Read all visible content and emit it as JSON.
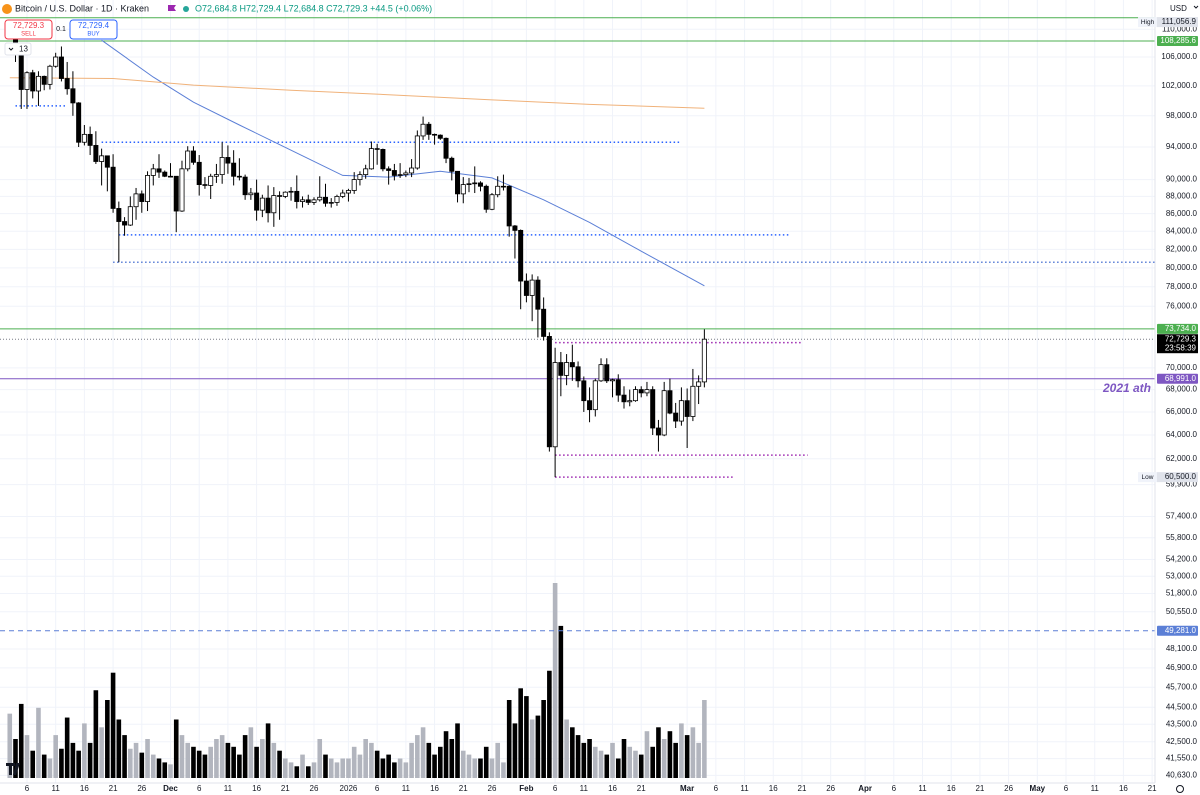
{
  "header": {
    "symbol": "Bitcoin / U.S. Dollar · 1D · Kraken",
    "ohlc": "O72,684.8 H72,729.4 L72,684.8 C72,729.3 +44.5 (+0.06%)",
    "sell_price": "72,729.3",
    "sell": "SELL",
    "spread": "0.1",
    "buy_price": "72,729.4",
    "buy": "BUY",
    "indicators": "13",
    "currency": "USD"
  },
  "chart_data": {
    "type": "candlestick",
    "log_scale": true,
    "grid": true,
    "xlim": [
      -1.7,
      199.5
    ],
    "ylim": [
      40220,
      114380
    ],
    "xticks": [
      {
        "value": 3,
        "label": "6"
      },
      {
        "value": 8,
        "label": "11"
      },
      {
        "value": 13,
        "label": "16"
      },
      {
        "value": 18,
        "label": "21"
      },
      {
        "value": 23,
        "label": "26"
      },
      {
        "value": 28,
        "label": "Dec"
      },
      {
        "value": 33,
        "label": "6"
      },
      {
        "value": 38,
        "label": "11"
      },
      {
        "value": 43,
        "label": "16"
      },
      {
        "value": 48,
        "label": "21"
      },
      {
        "value": 53,
        "label": "26"
      },
      {
        "value": 59,
        "label": "2026"
      },
      {
        "value": 64,
        "label": "6"
      },
      {
        "value": 69,
        "label": "11"
      },
      {
        "value": 74,
        "label": "16"
      },
      {
        "value": 79,
        "label": "21"
      },
      {
        "value": 84,
        "label": "26"
      },
      {
        "value": 90,
        "label": "Feb"
      },
      {
        "value": 95,
        "label": "6"
      },
      {
        "value": 100,
        "label": "11"
      },
      {
        "value": 105,
        "label": "16"
      },
      {
        "value": 110,
        "label": "21"
      },
      {
        "value": 118,
        "label": "Mar"
      },
      {
        "value": 123,
        "label": "6"
      },
      {
        "value": 128,
        "label": "11"
      },
      {
        "value": 133,
        "label": "16"
      },
      {
        "value": 138,
        "label": "21"
      },
      {
        "value": 143,
        "label": "26"
      },
      {
        "value": 149,
        "label": "Apr"
      },
      {
        "value": 154,
        "label": "6"
      },
      {
        "value": 159,
        "label": "11"
      },
      {
        "value": 164,
        "label": "16"
      },
      {
        "value": 169,
        "label": "21"
      },
      {
        "value": 174,
        "label": "26"
      },
      {
        "value": 179,
        "label": "May"
      },
      {
        "value": 184,
        "label": "6"
      },
      {
        "value": 189,
        "label": "11"
      },
      {
        "value": 194,
        "label": "16"
      },
      {
        "value": 199,
        "label": "21"
      }
    ],
    "yticks": [
      {
        "value": 110000,
        "label": "110,000.0"
      },
      {
        "value": 106000,
        "label": "106,000.0"
      },
      {
        "value": 102000,
        "label": "102,000.0"
      },
      {
        "value": 98000,
        "label": "98,000.0"
      },
      {
        "value": 94000,
        "label": "94,000.0"
      },
      {
        "value": 90000,
        "label": "90,000.0"
      },
      {
        "value": 88000,
        "label": "88,000.0"
      },
      {
        "value": 86000,
        "label": "86,000.0"
      },
      {
        "value": 84000,
        "label": "84,000.0"
      },
      {
        "value": 82000,
        "label": "82,000.0"
      },
      {
        "value": 80000,
        "label": "80,000.0"
      },
      {
        "value": 78000,
        "label": "78,000.0"
      },
      {
        "value": 76000,
        "label": "76,000.0"
      },
      {
        "value": 70000,
        "label": "70,000.0"
      },
      {
        "value": 68000,
        "label": "68,000.0"
      },
      {
        "value": 66000,
        "label": "66,000.0"
      },
      {
        "value": 64000,
        "label": "64,000.0"
      },
      {
        "value": 62000,
        "label": "62,000.0"
      },
      {
        "value": 59900,
        "label": "59,900.0"
      },
      {
        "value": 57400,
        "label": "57,400.0"
      },
      {
        "value": 55800,
        "label": "55,800.0"
      },
      {
        "value": 54200,
        "label": "54,200.0"
      },
      {
        "value": 53000,
        "label": "53,000.0"
      },
      {
        "value": 51800,
        "label": "51,800.0"
      },
      {
        "value": 50550,
        "label": "50,550.0"
      },
      {
        "value": 48100,
        "label": "48,100.0"
      },
      {
        "value": 46900,
        "label": "46,900.0"
      },
      {
        "value": 45700,
        "label": "45,700.0"
      },
      {
        "value": 44500,
        "label": "44,500.0"
      },
      {
        "value": 43500,
        "label": "43,500.0"
      },
      {
        "value": 42500,
        "label": "42,500.0"
      },
      {
        "value": 41550,
        "label": "41,550.0"
      },
      {
        "value": 40630,
        "label": "40,630.0"
      }
    ],
    "up_color": "#ffffff",
    "down_color": "#000000",
    "wick_color": "#000000",
    "candles": [
      [
        110500,
        111000,
        109500,
        110600
      ],
      [
        110600,
        110800,
        105300,
        106500
      ],
      [
        106500,
        107300,
        98900,
        101500
      ],
      [
        101500,
        104000,
        98900,
        103800
      ],
      [
        103800,
        104200,
        100300,
        101300
      ],
      [
        101300,
        104000,
        99300,
        103300
      ],
      [
        103300,
        103400,
        101400,
        102200
      ],
      [
        102200,
        104900,
        101500,
        104700
      ],
      [
        104700,
        106600,
        104500,
        106000
      ],
      [
        106000,
        107500,
        102600,
        103000
      ],
      [
        103000,
        105300,
        100800,
        101600
      ],
      [
        101600,
        104000,
        98000,
        99700
      ],
      [
        99700,
        99800,
        94000,
        94600
      ],
      [
        94600,
        96800,
        94200,
        95600
      ],
      [
        95600,
        96600,
        93000,
        94200
      ],
      [
        94200,
        96000,
        91900,
        92200
      ],
      [
        92200,
        93800,
        89300,
        92900
      ],
      [
        92900,
        92900,
        88600,
        91500
      ],
      [
        91500,
        93100,
        86100,
        86600
      ],
      [
        86600,
        87400,
        80600,
        85100
      ],
      [
        85100,
        85600,
        83500,
        84700
      ],
      [
        84700,
        88000,
        84600,
        86800
      ],
      [
        86800,
        89000,
        85300,
        88300
      ],
      [
        88300,
        88700,
        86100,
        87400
      ],
      [
        87400,
        91000,
        86300,
        90500
      ],
      [
        90500,
        91900,
        89300,
        91300
      ],
      [
        91300,
        93100,
        90200,
        90900
      ],
      [
        90900,
        91100,
        90300,
        90400
      ],
      [
        90400,
        92000,
        90300,
        90400
      ],
      [
        90400,
        90400,
        83900,
        86300
      ],
      [
        86300,
        92300,
        86200,
        91300
      ],
      [
        91300,
        94100,
        91000,
        93500
      ],
      [
        93500,
        94100,
        91800,
        92100
      ],
      [
        92100,
        93000,
        88100,
        89400
      ],
      [
        89400,
        90300,
        88900,
        89300
      ],
      [
        89300,
        90700,
        87700,
        90400
      ],
      [
        90400,
        91900,
        89600,
        90600
      ],
      [
        90600,
        94600,
        89500,
        92700
      ],
      [
        92700,
        94200,
        90700,
        92000
      ],
      [
        92000,
        93600,
        89300,
        90400
      ],
      [
        90400,
        92600,
        89900,
        90300
      ],
      [
        90300,
        90600,
        87600,
        88200
      ],
      [
        88200,
        89000,
        87600,
        88400
      ],
      [
        88400,
        90000,
        85200,
        86400
      ],
      [
        86400,
        88200,
        85600,
        87800
      ],
      [
        87800,
        89300,
        85000,
        86100
      ],
      [
        86100,
        89100,
        84500,
        88100
      ],
      [
        88100,
        88600,
        85300,
        88000
      ],
      [
        88000,
        88600,
        87800,
        88500
      ],
      [
        88500,
        89100,
        87500,
        88600
      ],
      [
        88600,
        90500,
        86600,
        87400
      ],
      [
        87400,
        88000,
        86700,
        87600
      ],
      [
        87600,
        88200,
        87000,
        87300
      ],
      [
        87300,
        87900,
        87000,
        87600
      ],
      [
        87600,
        90400,
        87400,
        87900
      ],
      [
        87900,
        89500,
        86800,
        87200
      ],
      [
        87200,
        87800,
        86700,
        87300
      ],
      [
        87300,
        88200,
        86900,
        88000
      ],
      [
        88000,
        88800,
        87800,
        88400
      ],
      [
        88400,
        88900,
        87400,
        88700
      ],
      [
        88700,
        90900,
        88300,
        90000
      ],
      [
        90000,
        91000,
        89300,
        90600
      ],
      [
        90600,
        91800,
        90100,
        91300
      ],
      [
        91300,
        94700,
        91200,
        93800
      ],
      [
        93800,
        94400,
        91800,
        93700
      ],
      [
        93700,
        93800,
        91000,
        91300
      ],
      [
        91300,
        91600,
        89400,
        91100
      ],
      [
        91100,
        91900,
        89900,
        90500
      ],
      [
        90500,
        92000,
        90200,
        90600
      ],
      [
        90600,
        91100,
        90300,
        90800
      ],
      [
        90800,
        92500,
        90300,
        91400
      ],
      [
        91400,
        96100,
        91200,
        95400
      ],
      [
        95400,
        97900,
        94900,
        96900
      ],
      [
        96900,
        97200,
        94900,
        95600
      ],
      [
        95600,
        95700,
        94300,
        95500
      ],
      [
        95500,
        95600,
        94900,
        95100
      ],
      [
        95100,
        95200,
        92000,
        92600
      ],
      [
        92600,
        92800,
        89900,
        91000
      ],
      [
        91000,
        91000,
        87300,
        88300
      ],
      [
        88300,
        90300,
        87200,
        89400
      ],
      [
        89400,
        90200,
        88500,
        89500
      ],
      [
        89500,
        91600,
        88400,
        89600
      ],
      [
        89600,
        89800,
        88600,
        89200
      ],
      [
        89200,
        89400,
        86100,
        86500
      ],
      [
        86500,
        88400,
        86400,
        88200
      ],
      [
        88200,
        90400,
        87900,
        89200
      ],
      [
        89200,
        90600,
        88700,
        89200
      ],
      [
        89200,
        89300,
        83400,
        84600
      ],
      [
        84600,
        84700,
        81000,
        84100
      ],
      [
        84100,
        84200,
        75700,
        78600
      ],
      [
        78600,
        79400,
        76400,
        77100
      ],
      [
        77100,
        79300,
        74500,
        78700
      ],
      [
        78700,
        79100,
        72900,
        75700
      ],
      [
        75700,
        76900,
        72600,
        73000
      ],
      [
        73000,
        73400,
        62600,
        63000
      ],
      [
        63000,
        71900,
        60500,
        70500
      ],
      [
        70500,
        71500,
        67400,
        69300
      ],
      [
        69300,
        71300,
        68400,
        70500
      ],
      [
        70500,
        72200,
        68800,
        70100
      ],
      [
        70100,
        70600,
        68200,
        68800
      ],
      [
        68800,
        69200,
        66000,
        67000
      ],
      [
        67000,
        68200,
        65100,
        66200
      ],
      [
        66200,
        69000,
        65600,
        68800
      ],
      [
        68800,
        70900,
        68700,
        70300
      ],
      [
        70300,
        70900,
        68600,
        68800
      ],
      [
        68800,
        69000,
        67300,
        68900
      ],
      [
        68900,
        69400,
        66900,
        67500
      ],
      [
        67500,
        68300,
        66300,
        66900
      ],
      [
        66900,
        68000,
        66500,
        67000
      ],
      [
        67000,
        68300,
        66900,
        68000
      ],
      [
        68000,
        68300,
        67300,
        67700
      ],
      [
        67700,
        68700,
        67400,
        68000
      ],
      [
        68000,
        68300,
        64000,
        64600
      ],
      [
        64600,
        65300,
        62600,
        64000
      ],
      [
        64000,
        68700,
        63900,
        67900
      ],
      [
        67900,
        69000,
        65800,
        65900
      ],
      [
        65900,
        66800,
        64600,
        65200
      ],
      [
        65200,
        68200,
        64800,
        67000
      ],
      [
        67000,
        68100,
        62900,
        65600
      ],
      [
        65600,
        69900,
        65200,
        68300
      ],
      [
        68300,
        69300,
        66700,
        68700
      ],
      [
        68700,
        73700,
        68200,
        72729.3
      ]
    ],
    "volume": {
      "ylim": [
        0,
        100
      ],
      "up_color": "#b2b5be",
      "down_color": "#000000",
      "values": [
        33,
        20,
        38,
        22,
        14,
        36,
        12,
        10,
        22,
        15,
        31,
        18,
        14,
        28,
        18,
        45,
        26,
        40,
        54,
        30,
        22,
        15,
        18,
        13,
        20,
        12,
        10,
        8,
        7,
        30,
        22,
        18,
        16,
        14,
        12,
        16,
        20,
        22,
        18,
        16,
        12,
        22,
        26,
        16,
        20,
        28,
        18,
        14,
        10,
        8,
        6,
        12,
        6,
        8,
        20,
        12,
        10,
        8,
        10,
        10,
        16,
        12,
        20,
        18,
        14,
        10,
        12,
        8,
        10,
        8,
        18,
        22,
        26,
        18,
        12,
        16,
        24,
        20,
        28,
        14,
        12,
        10,
        10,
        16,
        10,
        18,
        8,
        40,
        28,
        46,
        42,
        30,
        32,
        40,
        55,
        100,
        78,
        30,
        26,
        22,
        18,
        20,
        16,
        14,
        12,
        18,
        10,
        20,
        16,
        14,
        12,
        24,
        16,
        26,
        20,
        24,
        18,
        28,
        22,
        26,
        18,
        40
      ]
    },
    "moving_averages": [
      {
        "color": "#5b7fd6",
        "x": [
          16,
          25,
          32,
          40,
          49,
          58,
          66,
          75,
          84,
          93,
          101,
          110,
          121
        ],
        "values": [
          108400,
          103200,
          99800,
          96800,
          93600,
          90500,
          90300,
          91000,
          90200,
          87600,
          85000,
          81800,
          78100
        ]
      },
      {
        "color": "#f0b27a",
        "x": [
          0,
          18,
          32,
          49,
          66,
          84,
          101,
          121
        ],
        "values": [
          103100,
          103000,
          102100,
          101400,
          100800,
          100100,
          99500,
          99000
        ]
      }
    ],
    "levels": [
      {
        "value": 111700,
        "color": "#4caf50",
        "style": "solid"
      },
      {
        "value": 108285.6,
        "label": "108,285.6",
        "color": "#4caf50",
        "style": "solid"
      },
      {
        "value": 99300,
        "color": "#2962ff",
        "style": "dotted",
        "x": [
          1,
          10
        ]
      },
      {
        "value": 94600,
        "color": "#2962ff",
        "style": "dotted",
        "x": [
          16,
          117
        ]
      },
      {
        "value": 83600,
        "color": "#2962ff",
        "style": "dotted",
        "x": [
          19,
          136
        ]
      },
      {
        "value": 80600,
        "color": "#5b7fd6",
        "style": "dotted",
        "x": [
          18,
          199.5
        ]
      },
      {
        "value": 73734.0,
        "label": "73,734.0",
        "color": "#4caf50",
        "style": "solid"
      },
      {
        "value": 72400,
        "color": "#9c27b0",
        "style": "dotted",
        "x": [
          95,
          138
        ]
      },
      {
        "value": 68991.0,
        "label": "68,991.0",
        "color": "#7e57c2",
        "style": "solid",
        "annotation": "2021 ath"
      },
      {
        "value": 62300,
        "color": "#9c27b0",
        "style": "dotted",
        "x": [
          95,
          139
        ]
      },
      {
        "value": 60500,
        "color": "#9c27b0",
        "style": "dotted",
        "x": [
          95,
          126
        ]
      },
      {
        "value": 49281.0,
        "label": "49,281.0",
        "color": "#5b7fd6",
        "style": "dashed"
      }
    ],
    "current_price": {
      "value": 72729.3,
      "label": "72,729.3",
      "countdown": "23:58:39"
    },
    "high": {
      "value": 111056.9,
      "label": "111,056.9",
      "tag": "High"
    },
    "low": {
      "value": 60500,
      "label": "60,500.0",
      "tag": "Low"
    }
  }
}
